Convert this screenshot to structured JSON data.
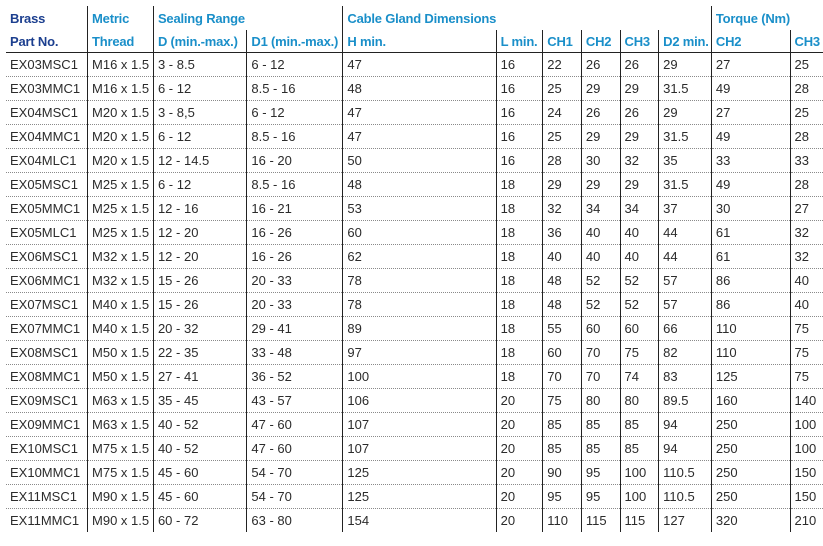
{
  "headers": {
    "brass": "Brass",
    "part_no": "Part No.",
    "metric": "Metric",
    "thread": "Thread",
    "sealing_range": "Sealing Range",
    "d_range": "D (min.-max.)",
    "d1_range": "D1 (min.-max.)",
    "cable_gland_dimensions": "Cable Gland Dimensions",
    "h_min": "H min.",
    "l_min": "L min.",
    "ch1": "CH1",
    "ch2": "CH2",
    "ch3": "CH3",
    "d2_min": "D2 min.",
    "torque": "Torque (Nm)",
    "torque_ch2": "CH2",
    "torque_ch3": "CH3"
  },
  "rows": [
    [
      "EX03MSC1",
      "M16 x 1.5",
      "3 - 8.5",
      "6 - 12",
      "47",
      "16",
      "22",
      "26",
      "26",
      "29",
      "27",
      "25"
    ],
    [
      "EX03MMC1",
      "M16 x 1.5",
      "6 - 12",
      "8.5 - 16",
      "48",
      "16",
      "25",
      "29",
      "29",
      "31.5",
      "49",
      "28"
    ],
    [
      "EX04MSC1",
      "M20 x 1.5",
      "3 - 8,5",
      "6 - 12",
      "47",
      "16",
      "24",
      "26",
      "26",
      "29",
      "27",
      "25"
    ],
    [
      "EX04MMC1",
      "M20 x 1.5",
      "6 - 12",
      "8.5 - 16",
      "47",
      "16",
      "25",
      "29",
      "29",
      "31.5",
      "49",
      "28"
    ],
    [
      "EX04MLC1",
      "M20 x 1.5",
      "12 - 14.5",
      "16 - 20",
      "50",
      "16",
      "28",
      "30",
      "32",
      "35",
      "33",
      "33"
    ],
    [
      "EX05MSC1",
      "M25 x 1.5",
      "6 - 12",
      "8.5 - 16",
      "48",
      "18",
      "29",
      "29",
      "29",
      "31.5",
      "49",
      "28"
    ],
    [
      "EX05MMC1",
      "M25 x 1.5",
      "12 - 16",
      "16 - 21",
      "53",
      "18",
      "32",
      "34",
      "34",
      "37",
      "30",
      "27"
    ],
    [
      "EX05MLC1",
      "M25 x 1.5",
      "12 - 20",
      "16 - 26",
      "60",
      "18",
      "36",
      "40",
      "40",
      "44",
      "61",
      "32"
    ],
    [
      "EX06MSC1",
      "M32 x 1.5",
      "12 - 20",
      "16 - 26",
      "62",
      "18",
      "40",
      "40",
      "40",
      "44",
      "61",
      "32"
    ],
    [
      "EX06MMC1",
      "M32 x 1.5",
      "15 - 26",
      "20 - 33",
      "78",
      "18",
      "48",
      "52",
      "52",
      "57",
      "86",
      "40"
    ],
    [
      "EX07MSC1",
      "M40 x 1.5",
      "15 - 26",
      "20 - 33",
      "78",
      "18",
      "48",
      "52",
      "52",
      "57",
      "86",
      "40"
    ],
    [
      "EX07MMC1",
      "M40 x 1.5",
      "20 - 32",
      "29 - 41",
      "89",
      "18",
      "55",
      "60",
      "60",
      "66",
      "110",
      "75"
    ],
    [
      "EX08MSC1",
      "M50 x 1.5",
      "22 - 35",
      "33 - 48",
      "97",
      "18",
      "60",
      "70",
      "75",
      "82",
      "110",
      "75"
    ],
    [
      "EX08MMC1",
      "M50 x 1.5",
      "27 - 41",
      "36 - 52",
      "100",
      "18",
      "70",
      "70",
      "74",
      "83",
      "125",
      "75"
    ],
    [
      "EX09MSC1",
      "M63 x 1.5",
      "35 - 45",
      "43 - 57",
      "106",
      "20",
      "75",
      "80",
      "80",
      "89.5",
      "160",
      "140"
    ],
    [
      "EX09MMC1",
      "M63 x 1.5",
      "40 - 52",
      "47 - 60",
      "107",
      "20",
      "85",
      "85",
      "85",
      "94",
      "250",
      "100"
    ],
    [
      "EX10MSC1",
      "M75 x 1.5",
      "40 - 52",
      "47 - 60",
      "107",
      "20",
      "85",
      "85",
      "85",
      "94",
      "250",
      "100"
    ],
    [
      "EX10MMC1",
      "M75 x 1.5",
      "45 - 60",
      "54 - 70",
      "125",
      "20",
      "90",
      "95",
      "100",
      "110.5",
      "250",
      "150"
    ],
    [
      "EX11MSC1",
      "M90 x 1.5",
      "45 - 60",
      "54 - 70",
      "125",
      "20",
      "95",
      "95",
      "100",
      "110.5",
      "250",
      "150"
    ],
    [
      "EX11MMC1",
      "M90 x 1.5",
      "60 - 72",
      "63 - 80",
      "154",
      "20",
      "110",
      "115",
      "115",
      "127",
      "320",
      "210"
    ]
  ]
}
